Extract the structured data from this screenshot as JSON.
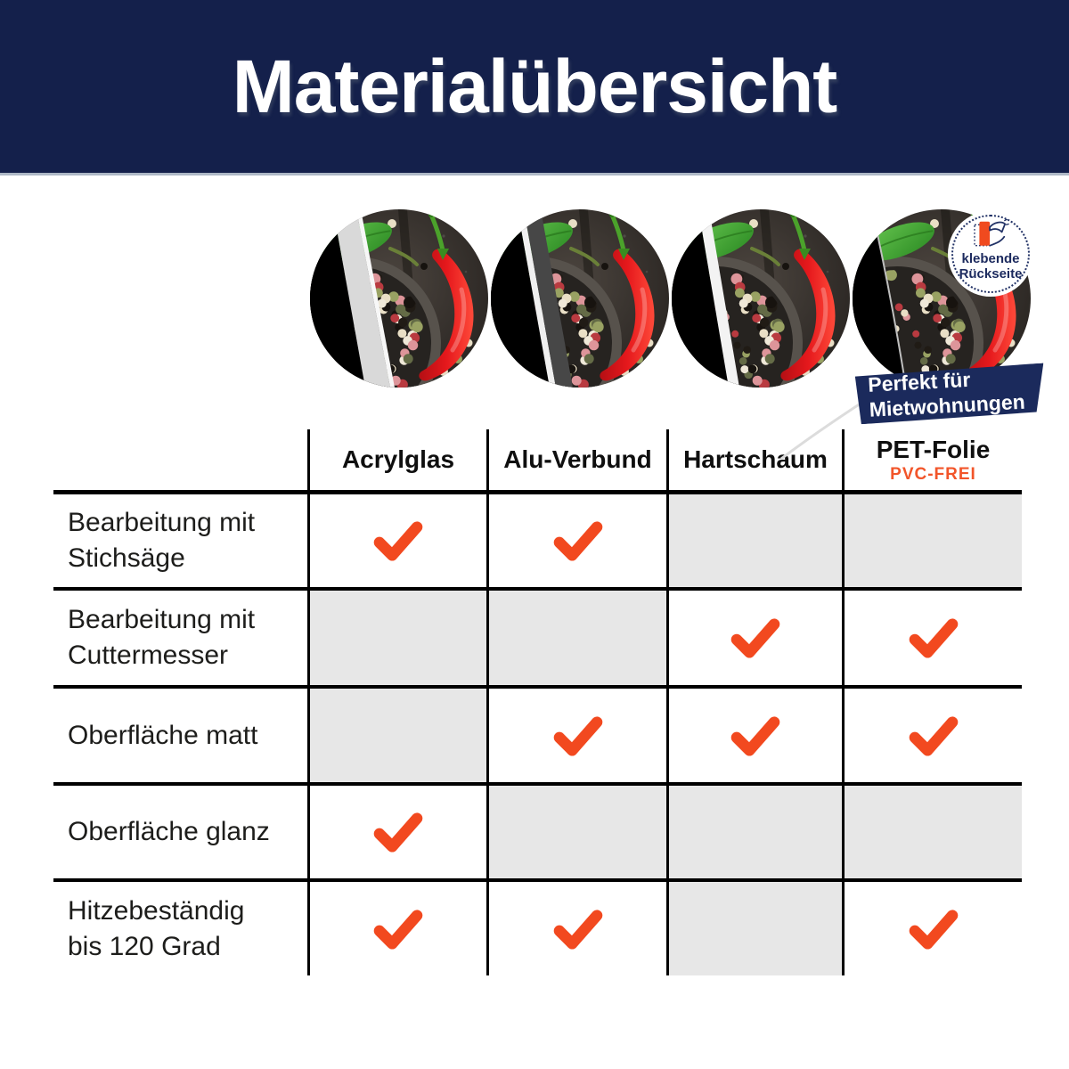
{
  "header": {
    "title": "Materialübersicht"
  },
  "materials": [
    {
      "edge": "acrylic-glass-edge"
    },
    {
      "edge": "alu-composite-edge"
    },
    {
      "edge": "foam-board-edge"
    },
    {
      "edge": "adhesive-film-edge",
      "badge_lines": [
        "klebende",
        "Rückseite"
      ],
      "ribbon_lines": [
        "Perfekt für",
        "Mietwohnungen"
      ]
    }
  ],
  "table": {
    "columns": [
      {
        "label": "Acrylglas",
        "sublabel": ""
      },
      {
        "label": "Alu-Verbund",
        "sublabel": ""
      },
      {
        "label": "Hartschaum",
        "sublabel": ""
      },
      {
        "label": "PET-Folie",
        "sublabel": "PVC-FREI"
      }
    ],
    "rows": [
      {
        "label_lines": [
          "Bearbeitung mit",
          "Stichsäge"
        ],
        "checks": [
          true,
          true,
          false,
          false
        ]
      },
      {
        "label_lines": [
          "Bearbeitung mit",
          "Cuttermesser"
        ],
        "checks": [
          false,
          false,
          true,
          true
        ]
      },
      {
        "label_lines": [
          "Oberfläche matt"
        ],
        "checks": [
          false,
          true,
          true,
          true
        ]
      },
      {
        "label_lines": [
          "Oberfläche glanz"
        ],
        "checks": [
          true,
          false,
          false,
          false
        ]
      },
      {
        "label_lines": [
          "Hitzebeständig",
          "bis 120 Grad"
        ],
        "checks": [
          true,
          true,
          false,
          true
        ]
      }
    ]
  },
  "colors": {
    "header_navy": "#14204b",
    "ribbon_navy": "#1b2a5c",
    "check_orange": "#f2491f",
    "pvc_free_orange": "#f2552a",
    "empty_cell_gray": "#e7e7e7",
    "grid_line_black": "#000000",
    "header_underline_gray": "#aeb8c6"
  }
}
